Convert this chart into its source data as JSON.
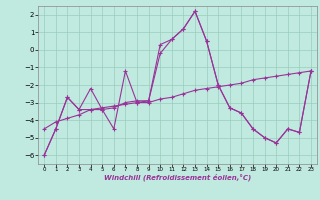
{
  "x": [
    0,
    1,
    2,
    3,
    4,
    5,
    6,
    7,
    8,
    9,
    10,
    11,
    12,
    13,
    14,
    15,
    16,
    17,
    18,
    19,
    20,
    21,
    22,
    23
  ],
  "line_spiky": [
    -6.0,
    -4.5,
    -2.7,
    -3.4,
    -2.2,
    -3.4,
    -4.5,
    -1.2,
    -3.0,
    -2.9,
    0.3,
    0.6,
    1.2,
    2.2,
    0.5,
    -2.0,
    -3.3,
    -3.6,
    -4.5,
    -5.0,
    -5.3,
    -4.5,
    -4.7,
    -1.2
  ],
  "line_smooth": [
    -6.0,
    -4.5,
    -2.7,
    -3.4,
    -3.4,
    -3.4,
    -3.3,
    -3.0,
    -2.9,
    -2.9,
    -0.2,
    0.6,
    1.2,
    2.2,
    0.5,
    -2.0,
    -3.3,
    -3.6,
    -4.5,
    -5.0,
    -5.3,
    -4.5,
    -4.7,
    -1.2
  ],
  "trend": [
    -4.5,
    -4.1,
    -3.9,
    -3.7,
    -3.4,
    -3.3,
    -3.2,
    -3.1,
    -3.0,
    -3.0,
    -2.8,
    -2.7,
    -2.5,
    -2.3,
    -2.2,
    -2.1,
    -2.0,
    -1.9,
    -1.7,
    -1.6,
    -1.5,
    -1.4,
    -1.3,
    -1.2
  ],
  "line_color": "#993399",
  "bg_color": "#c0eae0",
  "grid_color": "#99ccbb",
  "xlabel": "Windchill (Refroidissement éolien,°C)",
  "ylim": [
    -6.5,
    2.5
  ],
  "yticks": [
    -6,
    -5,
    -4,
    -3,
    -2,
    -1,
    0,
    1,
    2
  ],
  "xticks": [
    0,
    1,
    2,
    3,
    4,
    5,
    6,
    7,
    8,
    9,
    10,
    11,
    12,
    13,
    14,
    15,
    16,
    17,
    18,
    19,
    20,
    21,
    22,
    23
  ]
}
